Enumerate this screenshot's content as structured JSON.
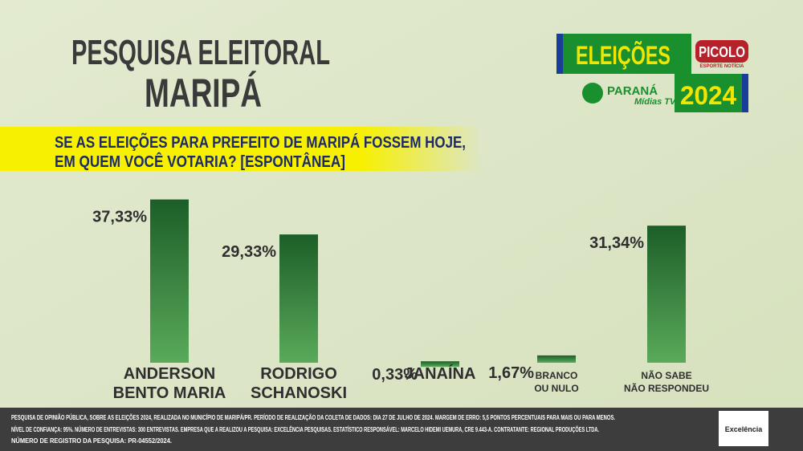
{
  "chart_data": {
    "type": "bar",
    "title": "PESQUISA ELEITORAL",
    "subtitle": "MARIPÁ",
    "question": [
      "SE AS ELEIÇÕES PARA PREFEITO DE MARIPÁ FOSSEM HOJE,",
      "EM QUEM VOCÊ VOTARIA? [ESPONTÂNEA]"
    ],
    "categories": [
      [
        "ANDERSON",
        "BENTO MARIA"
      ],
      [
        "RODRIGO",
        "SCHANOSKI"
      ],
      [
        "JANAÍNA"
      ],
      [
        "BRANCO",
        "OU NULO"
      ],
      [
        "NÃO SABE",
        "NÃO RESPONDEU"
      ]
    ],
    "values": [
      37.33,
      29.33,
      0.33,
      1.67,
      31.34
    ],
    "value_labels": [
      "37,33%",
      "29,33%",
      "0,33%",
      "1,67%",
      "31,34%"
    ],
    "color": "#1f6b2e"
  },
  "branding": {
    "election": "ELEIÇÕES",
    "year": "2024",
    "picolo": "PICOLO",
    "picolo_sub": "ESPORTE NOTÍCIA",
    "parana": "PARANÁ",
    "midias": "Mídias TV",
    "institute": "Excelência"
  },
  "footer": [
    "PESQUISA DE OPINIÃO PÚBLICA, SOBRE AS ELEIÇÕES 2024, REALIZADA NO MUNICÍPIO DE MARIPÁ/PR. PERÍODO DE REALIZAÇÃO DA COLETA DE DADOS: DIA 27 DE JULHO DE 2024. MARGEM DE ERRO: 5,5 PONTOS PERCENTUAIS PARA MAIS OU PARA MENOS.",
    "NÍVEL DE CONFIANÇA: 95%. NÚMERO DE ENTREVISTAS: 300 ENTREVISTAS. EMPRESA QUE A REALIZOU A PESQUISA: EXCELÊNCIA PESQUISAS. ESTATÍSTICO RESPONSÁVEL: MARCELO HIDEMI UEMURA, CRE 9.443-A. CONTRATANTE: REGIONAL PRODUÇÕES LTDA.",
    "NÚMERO DE REGISTRO DA PESQUISA: PR-04552/2024."
  ]
}
